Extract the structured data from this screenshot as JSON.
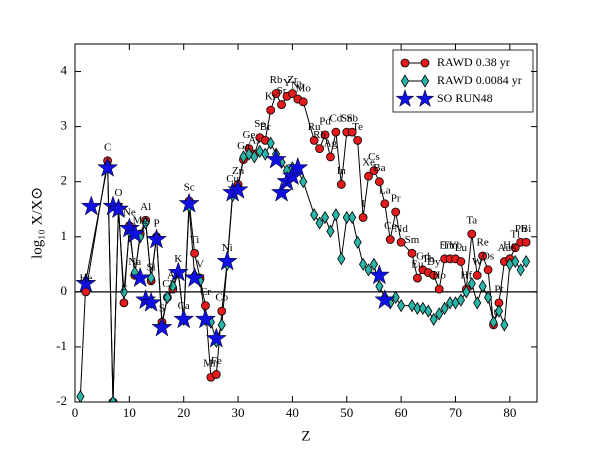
{
  "chart_data": {
    "type": "line",
    "xlabel": "Z",
    "ylabel": "log₁₀ X/X⊙",
    "xlim": [
      0,
      85
    ],
    "ylim": [
      -2,
      4.5
    ],
    "xticks": [
      0,
      10,
      20,
      30,
      40,
      50,
      60,
      70,
      80
    ],
    "yticks": [
      -2,
      -1,
      0,
      1,
      2,
      3,
      4
    ],
    "reference_line": 0,
    "legend": "upper right",
    "series": [
      {
        "name": "RAWD 0.38 yr",
        "color": "#e41a1c",
        "marker": "circle",
        "line": true,
        "x": [
          2,
          6,
          7,
          8,
          9,
          10,
          11,
          12,
          13,
          14,
          15,
          16,
          17,
          18,
          19,
          20,
          21,
          22,
          23,
          24,
          25,
          26,
          27,
          28,
          29,
          30,
          31,
          32,
          33,
          34,
          35,
          36,
          37,
          38,
          39,
          40,
          41,
          42,
          44,
          45,
          46,
          47,
          48,
          49,
          50,
          51,
          52,
          53,
          54,
          55,
          56,
          57,
          58,
          59,
          60,
          62,
          63,
          64,
          65,
          66,
          67,
          68,
          69,
          70,
          71,
          72,
          73,
          74,
          75,
          76,
          77,
          78,
          79,
          80,
          81,
          82,
          83
        ],
        "values": [
          0.0,
          2.38,
          -2.0,
          1.55,
          -0.2,
          1.2,
          0.3,
          1.05,
          1.3,
          0.2,
          1.0,
          -0.55,
          -0.1,
          0.05,
          0.35,
          -0.5,
          1.65,
          0.7,
          0.25,
          -0.25,
          -1.55,
          -1.5,
          -0.35,
          0.55,
          1.8,
          1.95,
          2.4,
          2.6,
          2.5,
          2.8,
          2.75,
          3.3,
          3.6,
          3.4,
          3.55,
          3.6,
          3.5,
          3.45,
          2.75,
          2.6,
          2.85,
          2.45,
          2.9,
          1.95,
          2.9,
          2.9,
          2.75,
          1.35,
          2.1,
          2.2,
          2.0,
          1.6,
          0.95,
          1.45,
          0.9,
          0.7,
          0.25,
          0.4,
          0.35,
          0.3,
          0.05,
          0.6,
          0.6,
          0.6,
          0.55,
          0.05,
          1.05,
          0.3,
          0.65,
          0.4,
          -0.6,
          -0.2,
          0.55,
          0.6,
          0.8,
          0.9,
          0.9
        ],
        "labels": [
          "He",
          "C",
          null,
          "O",
          "F",
          "Ne",
          "Na",
          "Mg",
          "Al",
          "Si",
          "P",
          "S",
          "Cl",
          "Ar",
          "K",
          "Ca",
          "Sc",
          "Ti",
          "V",
          "Cr",
          "Mn",
          "Fe",
          "Co",
          "Ni",
          "Cu",
          "Zn",
          "Ga",
          "Ge",
          "As",
          "Se",
          "Br",
          "Kr",
          "Rb",
          "Sr",
          "Y",
          "Zr",
          "Nb",
          "Mo",
          "Ru",
          "Rh",
          "Pd",
          "Ag",
          "Cd",
          "In",
          "Sn",
          "Sb",
          "Te",
          "I",
          "Xe",
          "Cs",
          "Ba",
          "La",
          "Ce",
          "Pr",
          "Nd",
          "Sm",
          "Eu",
          "Gd",
          "Tb",
          "Dy",
          "Ho",
          "Er",
          "Tm",
          "Yb",
          "Lu",
          "Hf",
          "Ta",
          "W",
          "Re",
          "Os",
          "Ir",
          "Pt",
          "Au",
          "Hg",
          "Tl",
          "Pb",
          "Bi"
        ]
      },
      {
        "name": "RAWD 0.0084 yr",
        "color": "#2ab5a8",
        "marker": "diamond",
        "line": true,
        "x": [
          1,
          2,
          6,
          7,
          8,
          9,
          10,
          11,
          12,
          13,
          14,
          15,
          16,
          17,
          18,
          19,
          20,
          21,
          22,
          23,
          24,
          25,
          26,
          27,
          28,
          29,
          30,
          31,
          32,
          33,
          34,
          35,
          36,
          37,
          38,
          39,
          40,
          41,
          42,
          44,
          45,
          46,
          47,
          48,
          49,
          50,
          51,
          52,
          53,
          54,
          55,
          56,
          57,
          58,
          59,
          60,
          62,
          63,
          64,
          65,
          66,
          67,
          68,
          69,
          70,
          71,
          72,
          73,
          74,
          75,
          76,
          77,
          78,
          79,
          80,
          81,
          82,
          83
        ],
        "values": [
          -1.9,
          0.2,
          2.3,
          -2.0,
          1.5,
          0.0,
          1.1,
          0.35,
          1.0,
          1.25,
          0.25,
          1.0,
          -0.6,
          -0.1,
          0.1,
          0.35,
          -0.5,
          1.55,
          0.3,
          0.2,
          -0.5,
          -0.55,
          -0.9,
          -0.6,
          0.5,
          1.75,
          1.9,
          2.45,
          2.5,
          2.45,
          2.55,
          2.5,
          2.7,
          2.5,
          2.35,
          2.2,
          2.25,
          2.2,
          2.0,
          1.4,
          1.25,
          1.35,
          1.1,
          1.4,
          0.6,
          1.35,
          1.35,
          0.9,
          0.5,
          0.4,
          0.5,
          0.1,
          -0.1,
          -0.2,
          -0.1,
          -0.25,
          -0.25,
          -0.3,
          -0.3,
          -0.35,
          -0.5,
          -0.4,
          -0.3,
          -0.2,
          -0.2,
          -0.15,
          0.0,
          0.15,
          -0.2,
          0.1,
          -0.1,
          -0.55,
          -0.35,
          -0.6,
          0.5,
          0.55,
          0.4,
          0.55
        ]
      },
      {
        "name": "SO RUN48",
        "color": "#1010e0",
        "marker": "star",
        "line": false,
        "x": [
          2,
          3,
          6,
          7,
          8,
          10,
          11,
          12,
          13,
          14,
          15,
          16,
          19,
          20,
          21,
          22,
          24,
          26,
          28,
          29,
          30,
          37,
          38,
          39,
          40,
          41,
          56,
          57
        ],
        "values": [
          0.15,
          1.55,
          2.25,
          1.55,
          1.5,
          1.15,
          1.05,
          0.25,
          -0.15,
          -0.2,
          0.95,
          -0.65,
          0.35,
          -0.5,
          1.6,
          0.25,
          -0.5,
          -0.85,
          0.55,
          1.8,
          1.85,
          2.4,
          1.8,
          2.0,
          2.1,
          2.25,
          0.3,
          -0.15
        ]
      }
    ]
  }
}
